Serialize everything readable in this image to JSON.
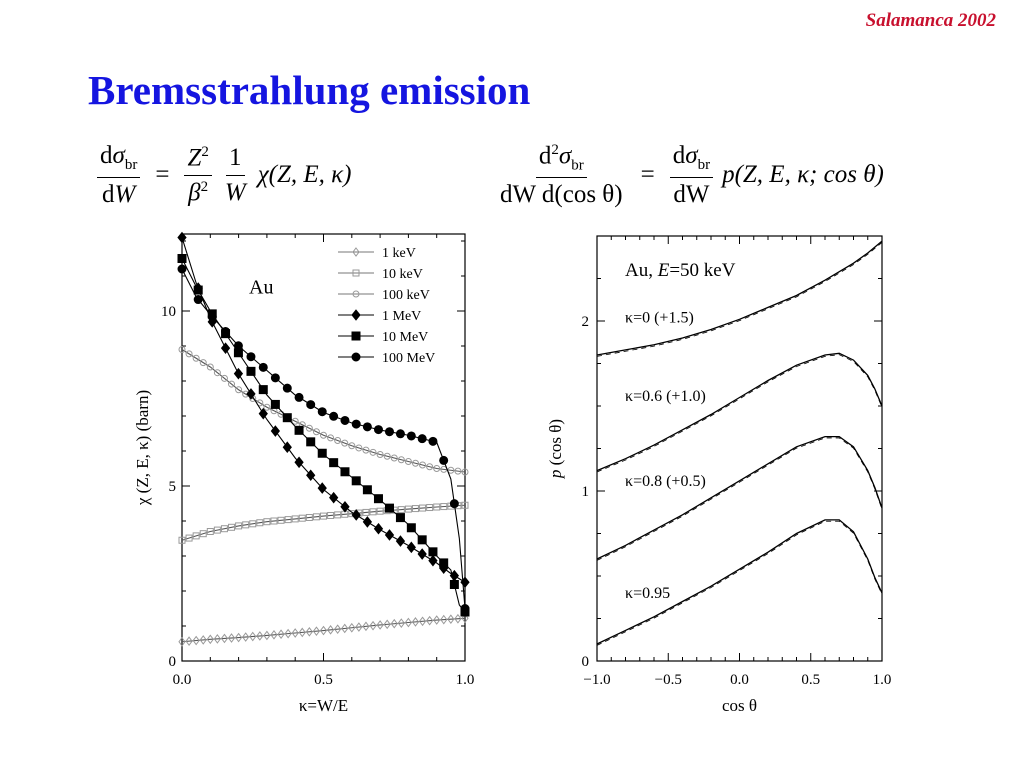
{
  "header": {
    "tag": "Salamanca 2002"
  },
  "slide": {
    "title": "Bremsstrahlung emission"
  },
  "equations": {
    "eq1": {
      "num_d": "d",
      "sigma": "σ",
      "sub_br": "br",
      "den_d": "d",
      "den_W": "W",
      "eqsign": "=",
      "Z": "Z",
      "Z_exp": "2",
      "beta": "β",
      "beta_exp": "2",
      "one": "1",
      "W": "W",
      "rhs": "χ(Z, E, κ)"
    },
    "eq2": {
      "num_d": "d",
      "num_exp": "2",
      "sigma": "σ",
      "sub_br": "br",
      "den": "dW d(cos θ)",
      "eqsign": "=",
      "num2_d": "d",
      "sigma2": "σ",
      "sub_br2": "br",
      "den2": "dW",
      "rhs": "p(Z, E, κ; cos θ)"
    }
  },
  "chart_data": [
    {
      "type": "line",
      "xlabel": "κ=W/E",
      "ylabel": "χ (Z, E, κ)  (barn)",
      "xlim": [
        0,
        1
      ],
      "ylim": [
        0,
        12.2
      ],
      "xticks": [
        "0.0",
        "0.5",
        "1.0"
      ],
      "yticks": [
        "0",
        "5",
        "10"
      ],
      "annotation": "Au",
      "legend_position": "top-right",
      "series": [
        {
          "name": "1 keV",
          "marker": "diamond-open",
          "x": [
            0,
            0.1,
            0.2,
            0.3,
            0.4,
            0.5,
            0.6,
            0.7,
            0.8,
            0.9,
            1.0
          ],
          "y": [
            0.55,
            0.62,
            0.67,
            0.73,
            0.8,
            0.87,
            0.95,
            1.03,
            1.1,
            1.17,
            1.22
          ]
        },
        {
          "name": "10 keV",
          "marker": "square-open",
          "x": [
            0,
            0.1,
            0.2,
            0.3,
            0.4,
            0.5,
            0.6,
            0.7,
            0.8,
            0.9,
            1.0
          ],
          "y": [
            3.45,
            3.7,
            3.86,
            3.98,
            4.06,
            4.14,
            4.21,
            4.28,
            4.34,
            4.4,
            4.45
          ]
        },
        {
          "name": "100 keV",
          "marker": "circle-open",
          "x": [
            0,
            0.1,
            0.2,
            0.3,
            0.4,
            0.5,
            0.6,
            0.7,
            0.8,
            0.9,
            1.0
          ],
          "y": [
            8.9,
            8.4,
            7.75,
            7.25,
            6.85,
            6.45,
            6.15,
            5.9,
            5.7,
            5.5,
            5.4
          ]
        },
        {
          "name": "1 MeV",
          "marker": "diamond-filled",
          "x": [
            0,
            0.05,
            0.1,
            0.2,
            0.3,
            0.4,
            0.5,
            0.6,
            0.7,
            0.8,
            0.9,
            0.95,
            1.0
          ],
          "y": [
            12.1,
            10.8,
            9.8,
            8.2,
            6.9,
            5.8,
            4.9,
            4.25,
            3.75,
            3.3,
            2.8,
            2.5,
            2.25
          ]
        },
        {
          "name": "10 MeV",
          "marker": "square-filled",
          "x": [
            0,
            0.05,
            0.1,
            0.2,
            0.3,
            0.4,
            0.5,
            0.6,
            0.7,
            0.8,
            0.9,
            0.95,
            0.98,
            1.0
          ],
          "y": [
            11.5,
            10.7,
            10.0,
            8.8,
            7.6,
            6.7,
            5.9,
            5.25,
            4.6,
            3.9,
            3.0,
            2.6,
            1.6,
            1.4
          ]
        },
        {
          "name": "100 MeV",
          "marker": "circle-filled",
          "x": [
            0,
            0.05,
            0.1,
            0.2,
            0.3,
            0.4,
            0.5,
            0.6,
            0.7,
            0.8,
            0.9,
            0.95,
            0.98,
            1.0
          ],
          "y": [
            11.2,
            10.4,
            9.9,
            9.0,
            8.3,
            7.6,
            7.1,
            6.8,
            6.6,
            6.45,
            6.25,
            5.2,
            3.5,
            1.5
          ]
        }
      ]
    },
    {
      "type": "line",
      "xlabel": "cos θ",
      "ylabel": "p (cos θ)",
      "xlim": [
        -1,
        1
      ],
      "ylim": [
        0,
        2.5
      ],
      "xticks": [
        "−1.0",
        "−0.5",
        "0.0",
        "0.5",
        "1.0"
      ],
      "yticks": [
        "0",
        "1",
        "2"
      ],
      "annotation_prefix": "Au,  ",
      "annotation_E": "E",
      "annotation_suffix": "=50 keV",
      "series": [
        {
          "name": "κ=0 (+1.5)",
          "x": [
            -1,
            -0.8,
            -0.6,
            -0.4,
            -0.2,
            0,
            0.2,
            0.4,
            0.6,
            0.8,
            0.9,
            1.0
          ],
          "y": [
            1.8,
            1.83,
            1.86,
            1.9,
            1.95,
            2.01,
            2.08,
            2.15,
            2.24,
            2.34,
            2.4,
            2.47
          ]
        },
        {
          "name": "κ=0.6 (+1.0)",
          "x": [
            -1,
            -0.8,
            -0.6,
            -0.4,
            -0.2,
            0,
            0.2,
            0.4,
            0.6,
            0.7,
            0.8,
            0.9,
            0.95,
            1.0
          ],
          "y": [
            1.12,
            1.19,
            1.27,
            1.36,
            1.45,
            1.55,
            1.65,
            1.74,
            1.8,
            1.81,
            1.77,
            1.68,
            1.6,
            1.5
          ]
        },
        {
          "name": "κ=0.8 (+0.5)",
          "x": [
            -1,
            -0.8,
            -0.6,
            -0.4,
            -0.2,
            0,
            0.2,
            0.4,
            0.6,
            0.7,
            0.8,
            0.9,
            0.95,
            1.0
          ],
          "y": [
            0.6,
            0.68,
            0.77,
            0.86,
            0.96,
            1.06,
            1.16,
            1.26,
            1.32,
            1.32,
            1.26,
            1.12,
            1.02,
            0.9
          ]
        },
        {
          "name": "κ=0.95",
          "x": [
            -1,
            -0.8,
            -0.6,
            -0.4,
            -0.2,
            0,
            0.2,
            0.4,
            0.6,
            0.7,
            0.8,
            0.9,
            0.95,
            1.0
          ],
          "y": [
            0.1,
            0.18,
            0.26,
            0.35,
            0.44,
            0.54,
            0.64,
            0.75,
            0.83,
            0.83,
            0.76,
            0.6,
            0.49,
            0.4
          ]
        }
      ]
    }
  ]
}
